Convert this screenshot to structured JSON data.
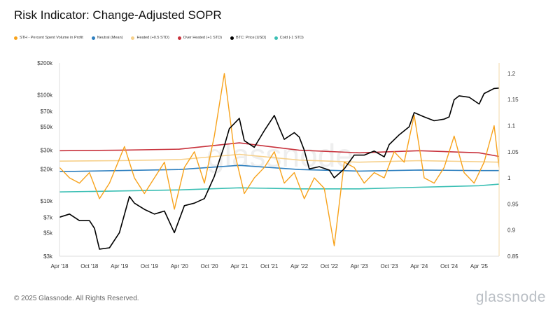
{
  "title": "Risk Indicator: Change-Adjusted SOPR",
  "footer": "© 2025 Glassnode. All Rights Reserved.",
  "brand": "glassnode",
  "watermark": "glassnode",
  "legend": [
    {
      "label": "STH - Percent Spent Volume in Profit",
      "color": "#f7a21b"
    },
    {
      "label": "Neutral (Mean)",
      "color": "#2d7fbf"
    },
    {
      "label": "Heated (+0.5 STD)",
      "color": "#f6d08a"
    },
    {
      "label": "Over Heated (+1 STD)",
      "color": "#c8323c"
    },
    {
      "label": "BTC: Price [USD]",
      "color": "#000000"
    },
    {
      "label": "Cold (-1 STD)",
      "color": "#3bbfb4"
    }
  ],
  "chart_data": {
    "type": "line",
    "x_ticks": [
      "Apr '18",
      "Oct '18",
      "Apr '19",
      "Oct '19",
      "Apr '20",
      "Oct '20",
      "Apr '21",
      "Oct '21",
      "Apr '22",
      "Oct '22",
      "Apr '23",
      "Oct '23",
      "Apr '24",
      "Oct '24",
      "Apr '25"
    ],
    "x_range": [
      "2018-04",
      "2025-08"
    ],
    "y_left": {
      "scale": "log",
      "range": [
        3000,
        200000
      ],
      "ticks": [
        "$3k",
        "$5k",
        "$7k",
        "$10k",
        "$20k",
        "$30k",
        "$50k",
        "$70k",
        "$100k",
        "$200k"
      ],
      "tick_values": [
        3000,
        5000,
        7000,
        10000,
        20000,
        30000,
        50000,
        70000,
        100000,
        200000
      ]
    },
    "y_right": {
      "scale": "linear",
      "range": [
        0.85,
        1.22
      ],
      "ticks": [
        "0.85",
        "0.9",
        "0.95",
        "1",
        "1.05",
        "1.1",
        "1.15",
        "1.2"
      ],
      "tick_values": [
        0.85,
        0.9,
        0.95,
        1.0,
        1.05,
        1.1,
        1.15,
        1.2
      ]
    },
    "series": [
      {
        "name": "BTC: Price [USD]",
        "axis": "left",
        "color": "#000000",
        "x": [
          "2018-04",
          "2018-06",
          "2018-08",
          "2018-10",
          "2018-11",
          "2018-12",
          "2019-02",
          "2019-04",
          "2019-06",
          "2019-07",
          "2019-09",
          "2019-11",
          "2020-01",
          "2020-03",
          "2020-05",
          "2020-07",
          "2020-09",
          "2020-11",
          "2020-12",
          "2021-01",
          "2021-02",
          "2021-04",
          "2021-05",
          "2021-07",
          "2021-09",
          "2021-11",
          "2021-12",
          "2022-01",
          "2022-03",
          "2022-04",
          "2022-05",
          "2022-06",
          "2022-08",
          "2022-10",
          "2022-11",
          "2023-01",
          "2023-03",
          "2023-05",
          "2023-07",
          "2023-09",
          "2023-10",
          "2023-12",
          "2024-02",
          "2024-03",
          "2024-05",
          "2024-07",
          "2024-09",
          "2024-10",
          "2024-11",
          "2024-12",
          "2025-02",
          "2025-04",
          "2025-05",
          "2025-07",
          "2025-08"
        ],
        "values": [
          7000,
          7500,
          6500,
          6500,
          5500,
          3500,
          3600,
          5000,
          11000,
          9500,
          8300,
          7500,
          8000,
          5000,
          9000,
          9500,
          10500,
          17000,
          24000,
          33000,
          48000,
          60000,
          37000,
          32000,
          46000,
          64000,
          49000,
          38000,
          44000,
          40000,
          30000,
          20000,
          21000,
          19500,
          16500,
          20000,
          27000,
          27000,
          29500,
          26000,
          34000,
          42000,
          50000,
          68000,
          62000,
          57000,
          59000,
          62000,
          90000,
          98000,
          95000,
          82000,
          103000,
          115000,
          116000
        ]
      },
      {
        "name": "STH - Percent Spent Volume in Profit",
        "axis": "right",
        "color": "#f7a21b",
        "x": [
          "2018-04",
          "2018-06",
          "2018-08",
          "2018-10",
          "2018-12",
          "2019-02",
          "2019-05",
          "2019-07",
          "2019-09",
          "2019-11",
          "2020-01",
          "2020-03",
          "2020-05",
          "2020-07",
          "2020-09",
          "2020-11",
          "2021-01",
          "2021-03",
          "2021-05",
          "2021-07",
          "2021-09",
          "2021-11",
          "2022-01",
          "2022-03",
          "2022-05",
          "2022-07",
          "2022-09",
          "2022-11",
          "2023-01",
          "2023-03",
          "2023-05",
          "2023-07",
          "2023-09",
          "2023-11",
          "2024-01",
          "2024-03",
          "2024-05",
          "2024-07",
          "2024-09",
          "2024-11",
          "2025-01",
          "2025-03",
          "2025-05",
          "2025-07",
          "2025-08"
        ],
        "values": [
          1.02,
          1.0,
          0.99,
          1.01,
          0.96,
          0.99,
          1.06,
          1.0,
          0.97,
          1.0,
          1.03,
          0.94,
          1.02,
          1.05,
          0.99,
          1.08,
          1.2,
          1.05,
          0.97,
          1.0,
          1.02,
          1.05,
          0.99,
          1.01,
          0.96,
          1.0,
          0.98,
          0.87,
          1.03,
          1.02,
          0.99,
          1.01,
          1.0,
          1.05,
          1.03,
          1.12,
          1.0,
          0.99,
          1.02,
          1.08,
          1.01,
          0.99,
          1.03,
          1.1,
          1.02
        ]
      },
      {
        "name": "Neutral (Mean)",
        "axis": "right",
        "color": "#2d7fbf",
        "x": [
          "2018-04",
          "2019-04",
          "2020-04",
          "2021-04",
          "2022-04",
          "2023-04",
          "2024-04",
          "2025-04",
          "2025-08"
        ],
        "values": [
          1.012,
          1.014,
          1.016,
          1.024,
          1.016,
          1.013,
          1.015,
          1.014,
          1.014
        ]
      },
      {
        "name": "Heated (+0.5 STD)",
        "axis": "right",
        "color": "#f6d08a",
        "x": [
          "2018-04",
          "2019-04",
          "2020-04",
          "2021-04",
          "2022-04",
          "2023-04",
          "2024-04",
          "2025-04",
          "2025-08"
        ],
        "values": [
          1.032,
          1.033,
          1.035,
          1.045,
          1.034,
          1.03,
          1.033,
          1.031,
          1.03
        ]
      },
      {
        "name": "Over Heated (+1 STD)",
        "axis": "right",
        "color": "#c8323c",
        "x": [
          "2018-04",
          "2019-04",
          "2020-04",
          "2021-04",
          "2022-04",
          "2023-04",
          "2024-04",
          "2025-04",
          "2025-08"
        ],
        "values": [
          1.052,
          1.053,
          1.055,
          1.067,
          1.053,
          1.048,
          1.052,
          1.048,
          1.041
        ]
      },
      {
        "name": "Cold (-1 STD)",
        "axis": "right",
        "color": "#3bbfb4",
        "x": [
          "2018-04",
          "2019-04",
          "2020-04",
          "2021-04",
          "2022-04",
          "2023-04",
          "2024-04",
          "2025-04",
          "2025-08"
        ],
        "values": [
          0.973,
          0.975,
          0.977,
          0.981,
          0.979,
          0.979,
          0.982,
          0.985,
          0.988
        ]
      }
    ],
    "grid": false,
    "legend_position": "top-left"
  }
}
